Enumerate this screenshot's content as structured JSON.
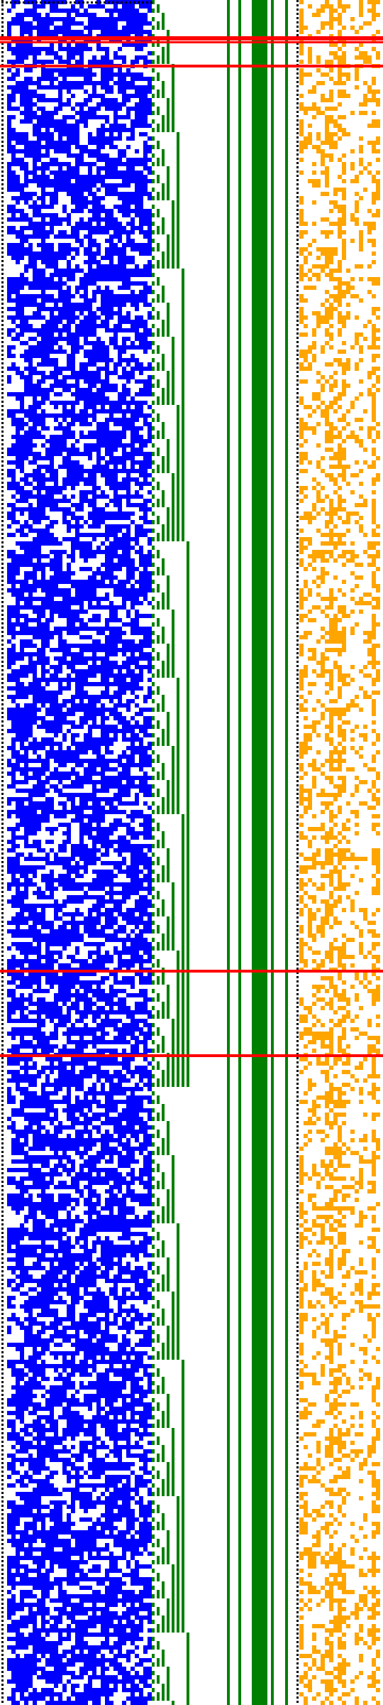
{
  "figure": {
    "description_visible_text": "",
    "colors": {
      "background": "#ffffff",
      "blue_field": "#0000ff",
      "green_staircase": "#008000",
      "green_bars": "#008000",
      "orange_field": "#ffa500",
      "red_lines": "#ff0000",
      "dotted_borders": "#000000"
    },
    "regions": [
      {
        "name": "left-dotted-border",
        "kind": "dotted-border"
      },
      {
        "name": "blue-noise-field",
        "kind": "random-cell-field",
        "color": "blue",
        "density": 0.55
      },
      {
        "name": "green-staircase-pattern",
        "kind": "binary-counter-staircase",
        "color": "green"
      },
      {
        "name": "green-vertical-bars",
        "kind": "solid-vertical-bars",
        "color": "green",
        "count": 5
      },
      {
        "name": "right-dotted-border",
        "kind": "dotted-border"
      },
      {
        "name": "orange-noise-field",
        "kind": "random-cell-field",
        "color": "orange",
        "density": 0.6
      }
    ],
    "horizontal_rules": {
      "color": "red",
      "count": 6
    }
  }
}
